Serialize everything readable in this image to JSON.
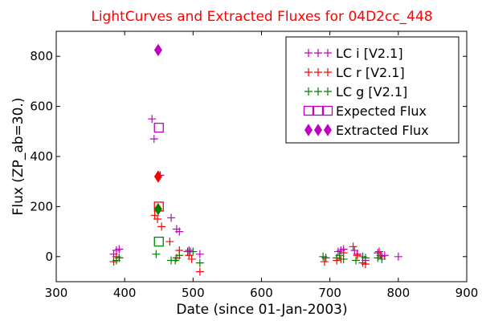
{
  "chart_data": {
    "type": "scatter",
    "title": "LightCurves and Extracted Fluxes for 04D2cc_448",
    "xlabel": "Date (since 01-Jan-2003)",
    "ylabel": "Flux (ZP_ab=30.)",
    "xlim": [
      300,
      900
    ],
    "ylim": [
      -100,
      900
    ],
    "xticks": [
      300,
      400,
      500,
      600,
      700,
      800,
      900
    ],
    "yticks": [
      0,
      200,
      400,
      600,
      800
    ],
    "grid": false,
    "legend_position": "top-right",
    "series": [
      {
        "name": "LC i [V2.1]",
        "marker": "plus",
        "color": "#bf00bf",
        "points": [
          [
            384,
            10
          ],
          [
            388,
            25
          ],
          [
            392,
            30
          ],
          [
            440,
            550
          ],
          [
            443,
            470
          ],
          [
            452,
            325
          ],
          [
            468,
            155
          ],
          [
            476,
            110
          ],
          [
            480,
            100
          ],
          [
            494,
            25
          ],
          [
            496,
            20
          ],
          [
            510,
            10
          ],
          [
            694,
            -5
          ],
          [
            712,
            20
          ],
          [
            716,
            25
          ],
          [
            720,
            30
          ],
          [
            736,
            25
          ],
          [
            740,
            10
          ],
          [
            752,
            -15
          ],
          [
            770,
            15
          ],
          [
            774,
            5
          ],
          [
            780,
            5
          ],
          [
            800,
            0
          ]
        ]
      },
      {
        "name": "LC r [V2.1]",
        "marker": "plus",
        "color": "#ff0000",
        "points": [
          [
            384,
            -20
          ],
          [
            388,
            0
          ],
          [
            392,
            -5
          ],
          [
            444,
            165
          ],
          [
            448,
            150
          ],
          [
            454,
            120
          ],
          [
            466,
            60
          ],
          [
            476,
            -5
          ],
          [
            480,
            25
          ],
          [
            494,
            5
          ],
          [
            498,
            -10
          ],
          [
            510,
            -60
          ],
          [
            692,
            -20
          ],
          [
            710,
            -15
          ],
          [
            716,
            -10
          ],
          [
            720,
            15
          ],
          [
            734,
            40
          ],
          [
            740,
            5
          ],
          [
            748,
            -25
          ],
          [
            752,
            -30
          ],
          [
            772,
            20
          ],
          [
            776,
            0
          ]
        ]
      },
      {
        "name": "LC g [V2.1]",
        "marker": "plus",
        "color": "#008000",
        "points": [
          [
            388,
            -15
          ],
          [
            392,
            -5
          ],
          [
            446,
            10
          ],
          [
            468,
            -15
          ],
          [
            474,
            -15
          ],
          [
            480,
            5
          ],
          [
            492,
            20
          ],
          [
            500,
            20
          ],
          [
            510,
            -25
          ],
          [
            690,
            0
          ],
          [
            694,
            -5
          ],
          [
            710,
            -5
          ],
          [
            714,
            5
          ],
          [
            720,
            -10
          ],
          [
            738,
            -15
          ],
          [
            748,
            0
          ],
          [
            752,
            -5
          ],
          [
            770,
            -5
          ],
          [
            776,
            -10
          ]
        ]
      },
      {
        "name": "Expected Flux",
        "marker": "square",
        "color": "#bf00bf",
        "points": [
          [
            450,
            515
          ]
        ]
      },
      {
        "name": "Extracted Flux",
        "marker": "diamond",
        "color": "#bf00bf",
        "points": [
          [
            449,
            825
          ]
        ]
      }
    ],
    "expected_markers_other_bands": [
      {
        "band": "r",
        "color": "#ff0000",
        "marker": "square",
        "point": [
          450,
          200
        ]
      },
      {
        "band": "g",
        "color": "#008000",
        "marker": "square",
        "point": [
          450,
          60
        ]
      }
    ],
    "extracted_markers_other_bands": [
      {
        "band": "r",
        "color": "#ff0000",
        "marker": "diamond",
        "point": [
          449,
          320
        ]
      },
      {
        "band": "g",
        "color": "#008000",
        "marker": "diamond",
        "point": [
          449,
          190
        ]
      }
    ]
  }
}
